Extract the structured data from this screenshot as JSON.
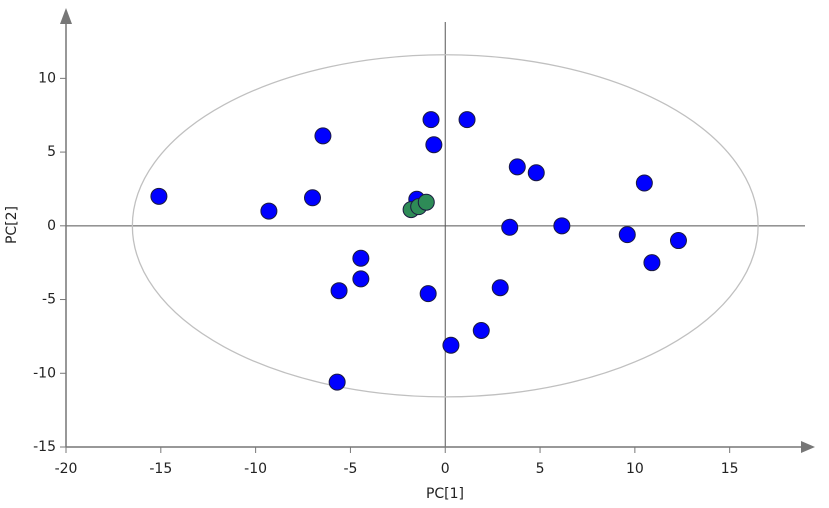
{
  "chart_data": {
    "type": "scatter",
    "xlabel": "PC[1]",
    "ylabel": "PC[2]",
    "xlim": [
      -20,
      19.5
    ],
    "ylim": [
      -15,
      14.5
    ],
    "xticks": [
      -20,
      -15,
      -10,
      -5,
      0,
      5,
      10,
      15
    ],
    "yticks": [
      -15,
      -10,
      -5,
      0,
      5,
      10
    ],
    "ellipse": {
      "rx": 16.5,
      "ry": 11.6,
      "color": "#c0c0c0"
    },
    "series": [
      {
        "color": "#0000ff",
        "x": [
          -15.1,
          -9.3,
          -7.0,
          -6.45,
          -4.45,
          -4.45,
          -5.6,
          -5.7,
          -1.5,
          -0.75,
          -0.6,
          -0.9,
          1.15,
          0.3,
          1.9,
          2.9,
          3.4,
          3.8,
          4.8,
          6.15,
          9.6,
          10.5,
          10.9,
          12.3
        ],
        "values": [
          2.0,
          1.0,
          1.9,
          6.1,
          -2.2,
          -3.6,
          -4.4,
          -10.6,
          1.8,
          7.2,
          5.5,
          -4.6,
          7.2,
          -8.1,
          -7.1,
          -4.2,
          -0.1,
          4.0,
          3.6,
          0.0,
          -0.6,
          2.9,
          -2.5,
          -1.0
        ]
      },
      {
        "color": "#2e8b57",
        "x": [
          -1.8,
          -1.4,
          -1.0
        ],
        "values": [
          1.1,
          1.3,
          1.6
        ]
      }
    ]
  }
}
